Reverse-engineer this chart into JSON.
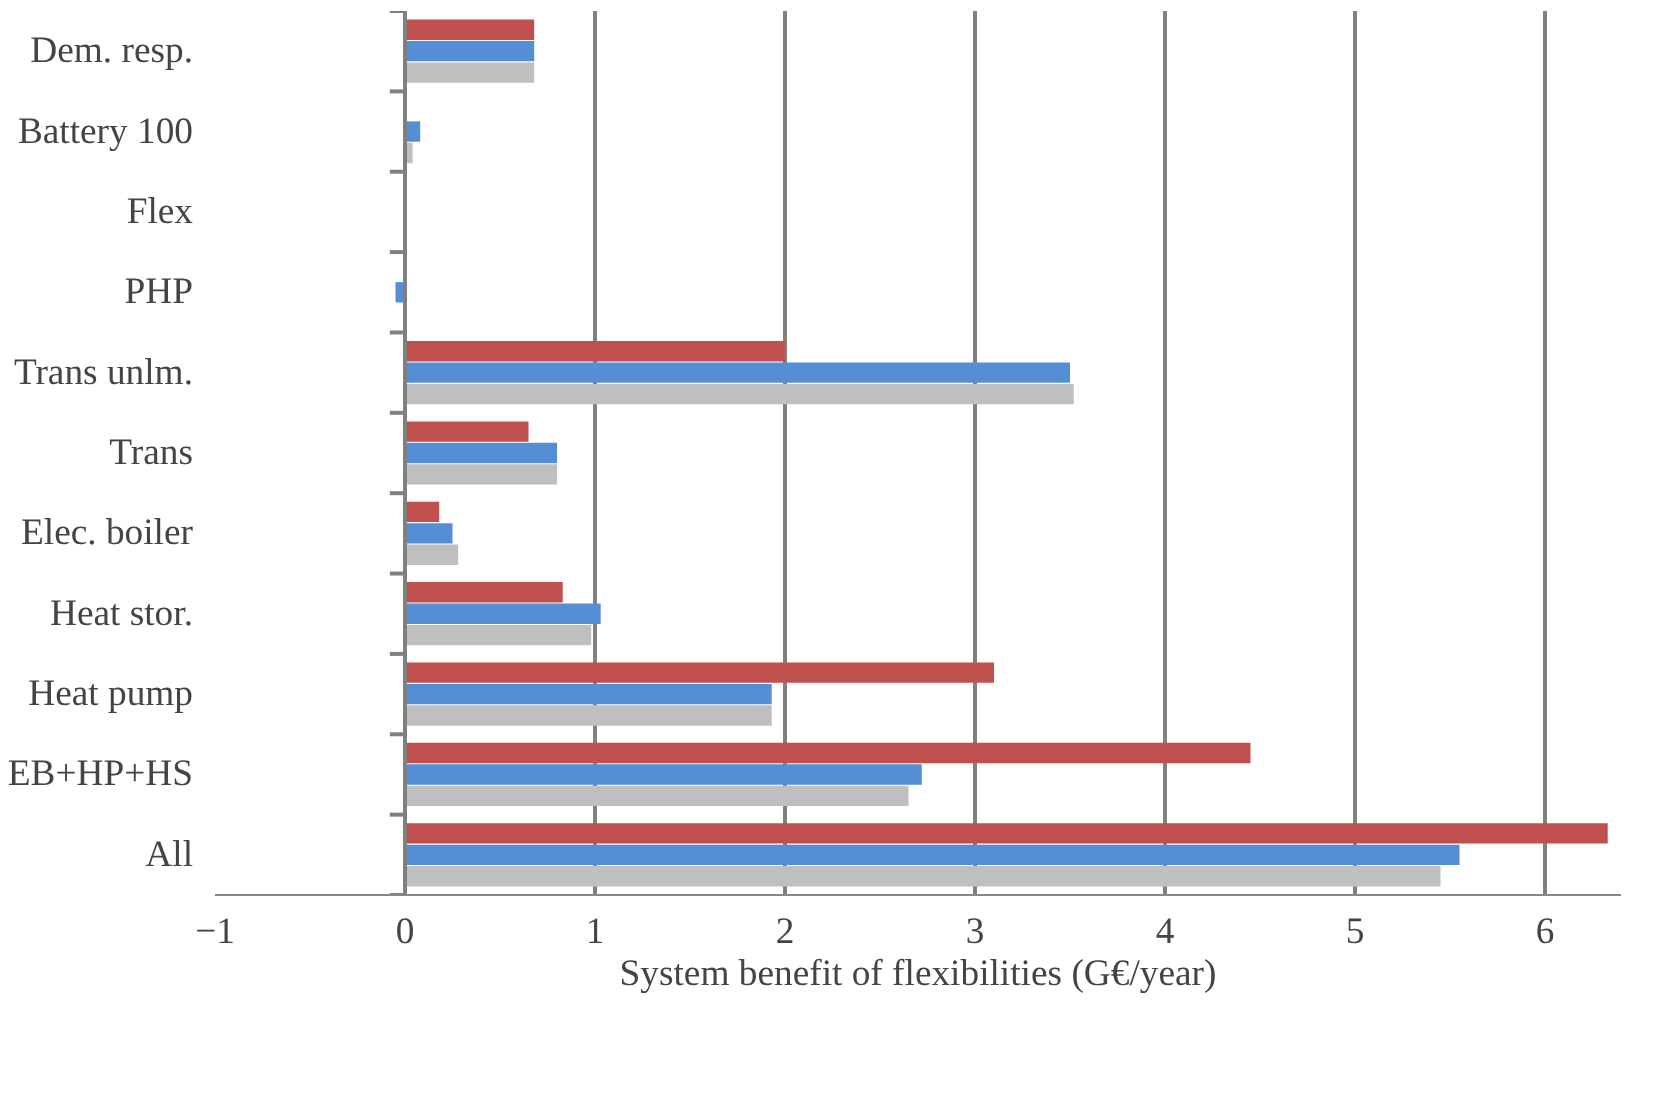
{
  "chart_data": {
    "type": "bar",
    "orientation": "horizontal",
    "xlabel": "System benefit of flexibilities (G€/year)",
    "categories": [
      "Dem. resp.",
      "Battery 100",
      "Flex",
      "PHP",
      "Trans unlm.",
      "Trans",
      "Elec. boiler",
      "Heat stor.",
      "Heat pump",
      "EB+HP+HS",
      "All"
    ],
    "series": [
      {
        "color": "#c0504d",
        "values": [
          0.68,
          0.01,
          0.0,
          0.0,
          2.0,
          0.65,
          0.18,
          0.83,
          3.1,
          4.45,
          6.33
        ]
      },
      {
        "color": "#558ed5",
        "values": [
          0.68,
          0.08,
          null,
          -0.05,
          3.5,
          0.8,
          0.25,
          1.03,
          1.93,
          2.72,
          5.55
        ]
      },
      {
        "color": "#bfbfbf",
        "values": [
          0.68,
          0.04,
          0.0,
          0.0,
          3.52,
          0.8,
          0.28,
          0.98,
          1.93,
          2.65,
          5.45
        ]
      }
    ],
    "xlim": [
      -1,
      6.4
    ],
    "xticks": [
      -1,
      0,
      1,
      2,
      3,
      4,
      5,
      6
    ],
    "grid": "x"
  }
}
